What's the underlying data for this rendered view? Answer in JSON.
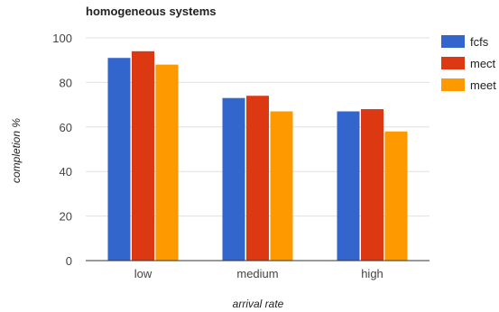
{
  "chart_data": {
    "type": "bar",
    "title": "homogeneous systems",
    "xlabel": "arrival rate",
    "ylabel": "completion %",
    "categories": [
      "low",
      "medium",
      "high"
    ],
    "series": [
      {
        "name": "fcfs",
        "color": "#3366cc",
        "values": [
          91,
          73,
          67
        ]
      },
      {
        "name": "mect",
        "color": "#dc3912",
        "values": [
          94,
          74,
          68
        ]
      },
      {
        "name": "meet",
        "color": "#ff9900",
        "values": [
          88,
          67,
          58
        ]
      }
    ],
    "ylim": [
      0,
      100
    ],
    "yticks": [
      0,
      20,
      40,
      60,
      80,
      100
    ],
    "grid": true,
    "legend": "right"
  }
}
